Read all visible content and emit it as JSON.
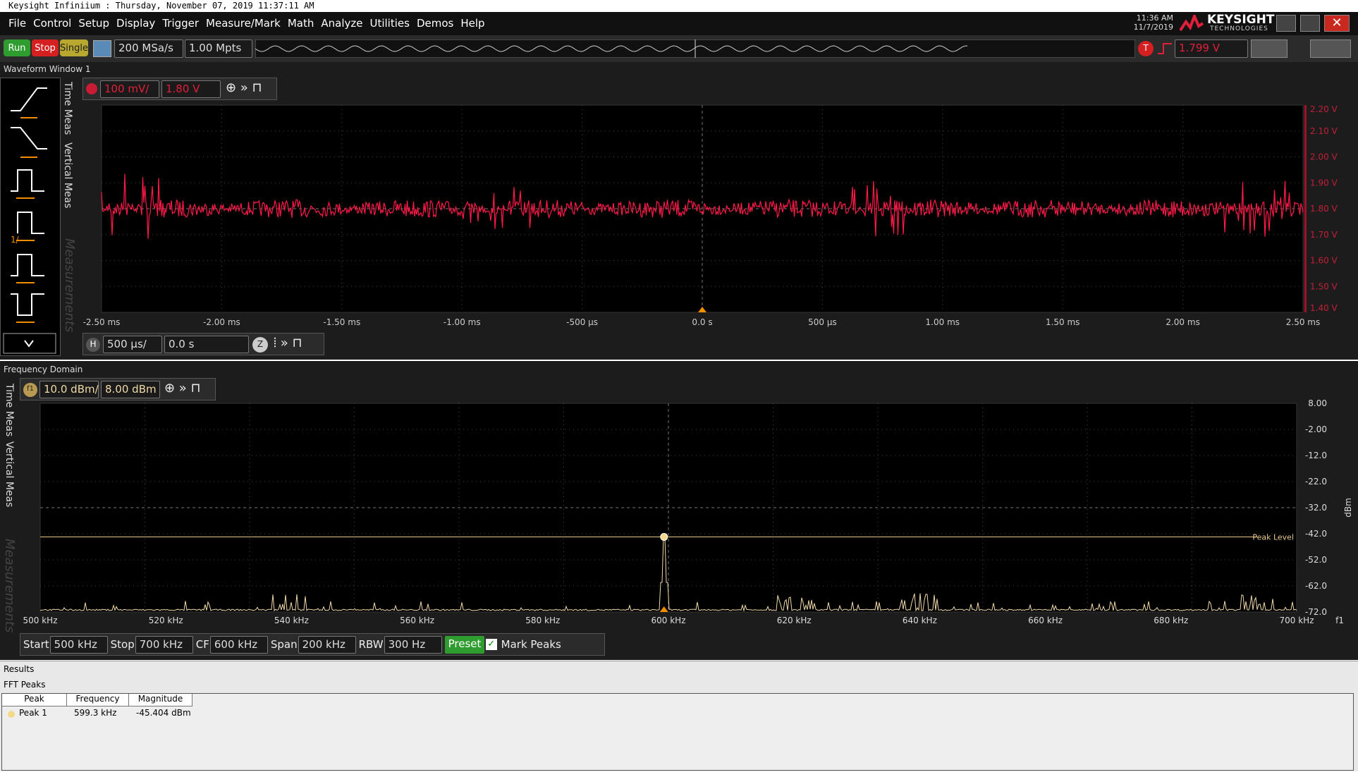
{
  "title_bar": "Keysight Infiniium : Thursday, November 07, 2019 11:37:11 AM",
  "menu": [
    "File",
    "Control",
    "Setup",
    "Display",
    "Trigger",
    "Measure/Mark",
    "Math",
    "Analyze",
    "Utilities",
    "Demos",
    "Help"
  ],
  "clock": {
    "time": "11:36 AM",
    "date": "11/7/2019"
  },
  "brand": {
    "name": "KEYSIGHT",
    "sub": "TECHNOLOGIES"
  },
  "toolbar": {
    "run": "Run",
    "stop": "Stop",
    "single": "Single",
    "sample_rate": "200 MSa/s",
    "memory": "1.00 Mpts",
    "trigger_badge": "T",
    "trigger_level": "1.799 V"
  },
  "waveform_window": {
    "title": "Waveform Window 1",
    "tabs": [
      "Time Meas",
      "Vertical Meas",
      "Measurements"
    ],
    "icon_label": "1/",
    "scale": "100 mV/",
    "offset": "1.80 V",
    "y_labels": [
      "2.20 V",
      "2.10 V",
      "2.00 V",
      "1.90 V",
      "1.80 V",
      "1.70 V",
      "1.60 V",
      "1.50 V",
      "1.40 V"
    ],
    "x_labels": [
      "-2.50 ms",
      "-2.00 ms",
      "-1.50 ms",
      "-1.00 ms",
      "-500 µs",
      "0.0 s",
      "500 µs",
      "1.00 ms",
      "1.50 ms",
      "2.00 ms",
      "2.50 ms"
    ],
    "h_label": "H",
    "timebase": "500 µs/",
    "delay": "0.0 s",
    "zoom": "Z"
  },
  "frequency_domain": {
    "title": "Frequency Domain",
    "tabs": [
      "Time Meas",
      "Vertical Meas",
      "Measurements"
    ],
    "channel": "f1",
    "scale": "10.0 dBm/",
    "ref": "8.00 dBm",
    "y_labels": [
      "8.00",
      "-2.00",
      "-12.0",
      "-22.0",
      "-32.0",
      "-42.0",
      "-52.0",
      "-62.0",
      "-72.0"
    ],
    "y_unit": "dBm",
    "x_labels": [
      "500 kHz",
      "520 kHz",
      "540 kHz",
      "560 kHz",
      "580 kHz",
      "600 kHz",
      "620 kHz",
      "640 kHz",
      "660 kHz",
      "680 kHz",
      "700 kHz"
    ],
    "x_source": "f1",
    "peak_level": "Peak Level",
    "controls": [
      {
        "label": "Start",
        "value": "500 kHz"
      },
      {
        "label": "Stop",
        "value": "700 kHz"
      },
      {
        "label": "CF",
        "value": "600 kHz"
      },
      {
        "label": "Span",
        "value": "200 kHz"
      },
      {
        "label": "RBW",
        "value": "300 Hz"
      }
    ],
    "preset": "Preset",
    "mark_peaks": "Mark Peaks"
  },
  "results": {
    "title": "Results",
    "tab": "FFT Peaks",
    "columns": [
      "Peak",
      "Frequency",
      "Magnitude"
    ],
    "rows": [
      [
        "Peak 1",
        "599.3 kHz",
        "-45.404 dBm"
      ]
    ]
  }
}
